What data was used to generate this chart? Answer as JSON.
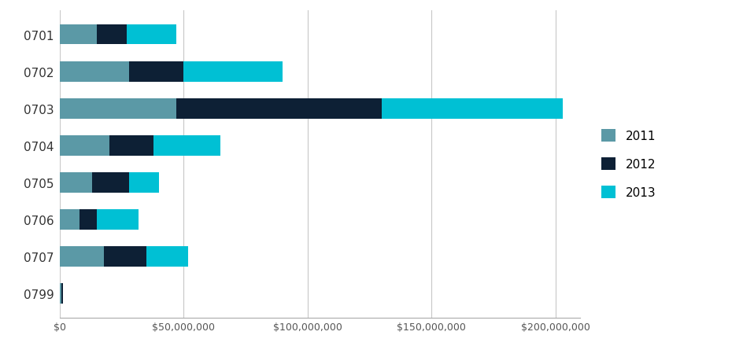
{
  "categories": [
    "0701",
    "0702",
    "0703",
    "0704",
    "0705",
    "0706",
    "0707",
    "0799"
  ],
  "values_2011": [
    15000000,
    28000000,
    47000000,
    20000000,
    13000000,
    8000000,
    18000000,
    800000
  ],
  "values_2012": [
    12000000,
    22000000,
    83000000,
    18000000,
    15000000,
    7000000,
    17000000,
    500000
  ],
  "values_2013": [
    20000000,
    40000000,
    73000000,
    27000000,
    12000000,
    17000000,
    17000000,
    200000
  ],
  "color_2011": "#5b99a6",
  "color_2012": "#0d2035",
  "color_2013": "#00c0d4",
  "legend_labels": [
    "2011",
    "2012",
    "2013"
  ],
  "xlim": [
    0,
    210000000
  ],
  "xtick_values": [
    0,
    50000000,
    100000000,
    150000000,
    200000000
  ],
  "xtick_labels": [
    "$0",
    "$50,000,000",
    "$100,000,000",
    "$150,000,000",
    "$200,000,000"
  ],
  "background_color": "#ffffff",
  "bar_height": 0.55,
  "grid_color": "#c8c8c8"
}
